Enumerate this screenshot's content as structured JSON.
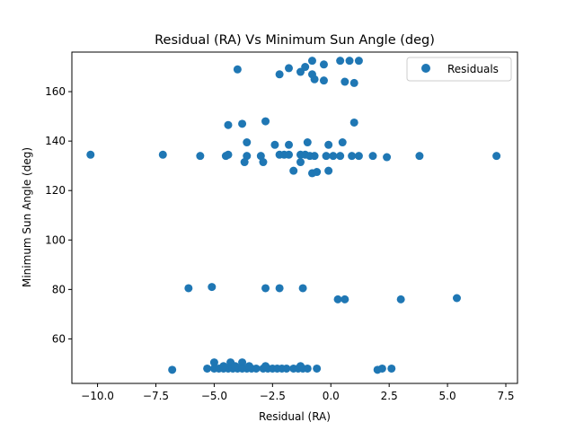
{
  "chart_data": {
    "type": "scatter",
    "title": "Residual (RA) Vs Minimum Sun Angle (deg)",
    "xlabel": "Residual (RA)",
    "ylabel": "Minimum Sun Angle (deg)",
    "xlim": [
      -11.1,
      8.0
    ],
    "ylim": [
      42,
      176
    ],
    "xticks": [
      -10.0,
      -7.5,
      -5.0,
      -2.5,
      0.0,
      2.5,
      5.0,
      7.5
    ],
    "xtick_labels": [
      "−10.0",
      "−7.5",
      "−5.0",
      "−2.5",
      "0.0",
      "2.5",
      "5.0",
      "7.5"
    ],
    "yticks": [
      60,
      80,
      100,
      120,
      140,
      160
    ],
    "ytick_labels": [
      "60",
      "80",
      "100",
      "120",
      "140",
      "160"
    ],
    "grid": false,
    "legend_position": "top-right",
    "marker_color": "#1f77b4",
    "series": [
      {
        "name": "Residuals",
        "points": [
          [
            -4.0,
            169
          ],
          [
            -1.8,
            169.5
          ],
          [
            -2.2,
            167
          ],
          [
            -1.3,
            168
          ],
          [
            -0.8,
            172.5
          ],
          [
            -0.3,
            171
          ],
          [
            0.4,
            172.5
          ],
          [
            0.8,
            172.5
          ],
          [
            1.2,
            172.5
          ],
          [
            -1.1,
            170
          ],
          [
            -0.8,
            167
          ],
          [
            -0.7,
            165
          ],
          [
            -0.3,
            164.5
          ],
          [
            0.6,
            164
          ],
          [
            1.0,
            163.5
          ],
          [
            -4.4,
            146.5
          ],
          [
            -3.8,
            147
          ],
          [
            -2.8,
            148
          ],
          [
            1.0,
            147.5
          ],
          [
            -3.6,
            139.5
          ],
          [
            -2.4,
            138.5
          ],
          [
            -1.8,
            138.5
          ],
          [
            -1.0,
            139.5
          ],
          [
            -0.1,
            138.5
          ],
          [
            0.5,
            139.5
          ],
          [
            -10.3,
            134.5
          ],
          [
            -7.2,
            134.5
          ],
          [
            -5.6,
            134
          ],
          [
            -4.5,
            134
          ],
          [
            -4.4,
            134.5
          ],
          [
            -3.6,
            134
          ],
          [
            -3.0,
            134
          ],
          [
            -2.2,
            134.5
          ],
          [
            -2.0,
            134.5
          ],
          [
            -1.8,
            134.5
          ],
          [
            -1.3,
            134.5
          ],
          [
            -1.1,
            134.5
          ],
          [
            -0.9,
            134
          ],
          [
            -0.7,
            134
          ],
          [
            -0.2,
            134
          ],
          [
            0.1,
            134
          ],
          [
            0.4,
            134
          ],
          [
            0.9,
            134
          ],
          [
            1.2,
            134
          ],
          [
            1.8,
            134
          ],
          [
            2.4,
            133.5
          ],
          [
            3.8,
            134
          ],
          [
            7.1,
            134
          ],
          [
            -3.7,
            131.5
          ],
          [
            -2.9,
            131.5
          ],
          [
            -1.3,
            131.5
          ],
          [
            -1.6,
            128
          ],
          [
            -0.8,
            127
          ],
          [
            -0.6,
            127.5
          ],
          [
            -0.1,
            128
          ],
          [
            -6.1,
            80.5
          ],
          [
            -5.1,
            81
          ],
          [
            -2.8,
            80.5
          ],
          [
            -2.2,
            80.5
          ],
          [
            -1.2,
            80.5
          ],
          [
            0.3,
            76
          ],
          [
            0.6,
            76
          ],
          [
            3.0,
            76
          ],
          [
            5.4,
            76.5
          ],
          [
            -5.0,
            50.5
          ],
          [
            -4.3,
            50.5
          ],
          [
            -3.8,
            50.5
          ],
          [
            -6.8,
            47.5
          ],
          [
            -5.3,
            48
          ],
          [
            -5.0,
            48
          ],
          [
            -4.8,
            48
          ],
          [
            -4.6,
            48
          ],
          [
            -4.4,
            48
          ],
          [
            -4.2,
            48
          ],
          [
            -4.0,
            48
          ],
          [
            -3.8,
            48
          ],
          [
            -3.6,
            48
          ],
          [
            -3.4,
            48
          ],
          [
            -3.2,
            48
          ],
          [
            -2.9,
            48
          ],
          [
            -2.7,
            48
          ],
          [
            -2.5,
            48
          ],
          [
            -2.3,
            48
          ],
          [
            -2.1,
            48
          ],
          [
            -1.9,
            48
          ],
          [
            -1.6,
            48
          ],
          [
            -1.4,
            48
          ],
          [
            -1.2,
            48
          ],
          [
            -1.0,
            48
          ],
          [
            -0.6,
            48
          ],
          [
            2.0,
            47.5
          ],
          [
            2.2,
            48
          ],
          [
            2.6,
            48
          ],
          [
            -4.6,
            49
          ],
          [
            -4.1,
            49
          ],
          [
            -3.5,
            49
          ],
          [
            -2.8,
            49
          ],
          [
            -1.3,
            49
          ]
        ]
      }
    ]
  }
}
